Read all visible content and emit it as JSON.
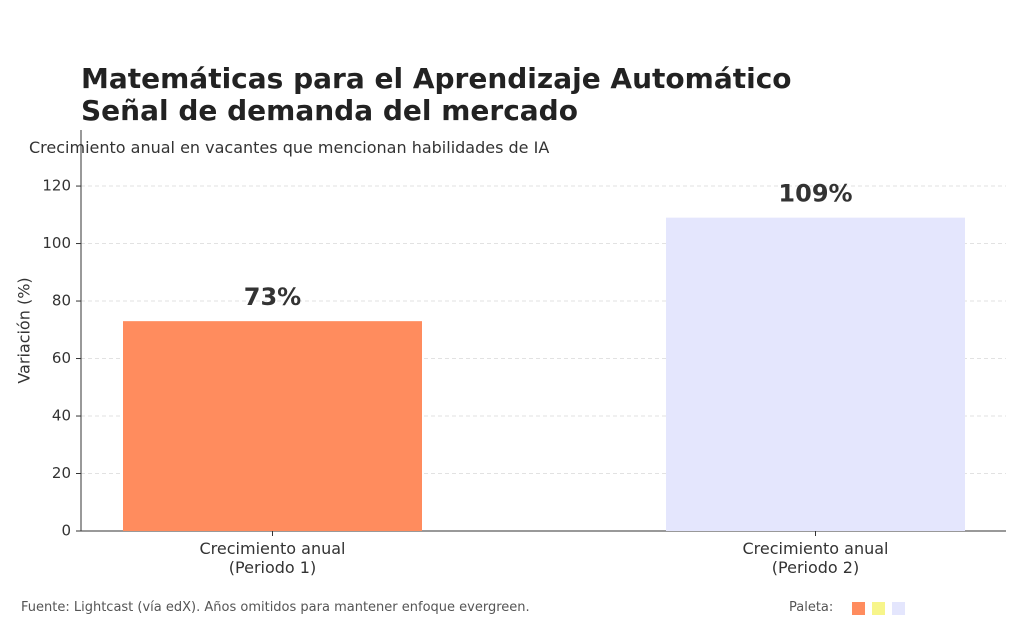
{
  "chart_data": {
    "type": "bar",
    "title": "Matemáticas para el Aprendizaje Automático\nSeñal de demanda del mercado",
    "subtitle": "Crecimiento anual en vacantes que mencionan habilidades de IA",
    "y_label": "Variación (%)",
    "categories": [
      "Crecimiento anual\n(Periodo 1)",
      "Crecimiento anual\n(Periodo 2)"
    ],
    "values": [
      73,
      109
    ],
    "value_labels": [
      "73%",
      "109%"
    ],
    "colors": [
      "#ff8c5e",
      "#e4e6fd"
    ],
    "ylim": [
      0,
      139.5
    ],
    "yticks": [
      0,
      20,
      40,
      60,
      80,
      100,
      120
    ],
    "grid": true,
    "source": "Fuente: Lightcast (vía edX). Años omitidos para mantener enfoque evergreen.",
    "palette": {
      "label": "Paleta:",
      "colors": [
        "#ff8c5e",
        "#f7f58a",
        "#e4e6fd"
      ]
    }
  }
}
